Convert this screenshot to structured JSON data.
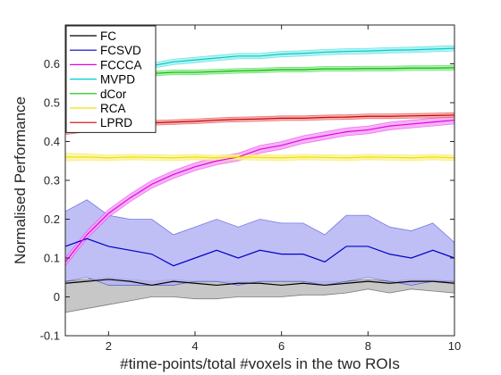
{
  "chart_data": {
    "type": "line",
    "xlabel": "#time-points/total #voxels in the two ROIs",
    "ylabel": "Normalised Performance",
    "xlim": [
      1,
      10
    ],
    "ylim": [
      -0.1,
      0.7
    ],
    "xticks": [
      2,
      4,
      6,
      8,
      10
    ],
    "yticks": [
      -0.1,
      0,
      0.1,
      0.2,
      0.3,
      0.4,
      0.5,
      0.6
    ],
    "x": [
      1,
      1.5,
      2,
      2.5,
      3,
      3.5,
      4,
      4.5,
      5,
      5.5,
      6,
      6.5,
      7,
      7.5,
      8,
      8.5,
      9,
      9.5,
      10
    ],
    "legend_position": "top-left",
    "grid": false,
    "series": [
      {
        "name": "FC",
        "color": "#000000",
        "band_color": "#bdbdbd",
        "mean": [
          0.035,
          0.04,
          0.045,
          0.04,
          0.03,
          0.04,
          0.035,
          0.03,
          0.035,
          0.035,
          0.03,
          0.035,
          0.03,
          0.035,
          0.04,
          0.035,
          0.04,
          0.04,
          0.035
        ],
        "lower": [
          -0.04,
          -0.03,
          -0.02,
          -0.01,
          0.0,
          0.0,
          -0.005,
          -0.005,
          0.0,
          0.0,
          0.0,
          0.005,
          0.005,
          0.01,
          0.02,
          0.01,
          0.02,
          0.015,
          0.01
        ],
        "upper": [
          0.04,
          0.045,
          0.05,
          0.045,
          0.04,
          0.045,
          0.04,
          0.04,
          0.04,
          0.04,
          0.04,
          0.04,
          0.04,
          0.04,
          0.045,
          0.04,
          0.045,
          0.045,
          0.04
        ]
      },
      {
        "name": "FCSVD",
        "color": "#0000c8",
        "band_color": "#b4b4f5",
        "mean": [
          0.13,
          0.15,
          0.13,
          0.12,
          0.11,
          0.08,
          0.1,
          0.12,
          0.1,
          0.12,
          0.11,
          0.11,
          0.09,
          0.13,
          0.13,
          0.11,
          0.1,
          0.12,
          0.1
        ],
        "lower": [
          0.04,
          0.05,
          0.03,
          0.03,
          0.03,
          0.03,
          0.04,
          0.04,
          0.03,
          0.04,
          0.04,
          0.04,
          0.03,
          0.04,
          0.05,
          0.04,
          0.03,
          0.04,
          0.04
        ],
        "upper": [
          0.22,
          0.25,
          0.21,
          0.2,
          0.2,
          0.16,
          0.18,
          0.2,
          0.18,
          0.2,
          0.19,
          0.19,
          0.16,
          0.21,
          0.21,
          0.18,
          0.17,
          0.19,
          0.14
        ]
      },
      {
        "name": "FCCCA",
        "color": "#e600e6",
        "band_color": "#f5a5f5",
        "mean": [
          0.09,
          0.16,
          0.215,
          0.255,
          0.29,
          0.315,
          0.335,
          0.35,
          0.36,
          0.38,
          0.39,
          0.405,
          0.415,
          0.425,
          0.43,
          0.44,
          0.445,
          0.45,
          0.455
        ],
        "lower": [
          0.08,
          0.15,
          0.205,
          0.245,
          0.28,
          0.305,
          0.325,
          0.34,
          0.35,
          0.37,
          0.38,
          0.395,
          0.405,
          0.415,
          0.42,
          0.43,
          0.435,
          0.44,
          0.445
        ],
        "upper": [
          0.1,
          0.17,
          0.225,
          0.265,
          0.3,
          0.325,
          0.345,
          0.36,
          0.37,
          0.39,
          0.4,
          0.415,
          0.425,
          0.435,
          0.44,
          0.45,
          0.455,
          0.46,
          0.465
        ]
      },
      {
        "name": "MVPD",
        "color": "#00cccc",
        "band_color": "#a8f0f0",
        "mean": [
          0.52,
          0.55,
          0.575,
          0.585,
          0.595,
          0.605,
          0.61,
          0.615,
          0.62,
          0.62,
          0.625,
          0.627,
          0.63,
          0.632,
          0.633,
          0.635,
          0.636,
          0.638,
          0.64
        ],
        "lower": [
          0.5,
          0.535,
          0.565,
          0.577,
          0.588,
          0.598,
          0.603,
          0.608,
          0.613,
          0.613,
          0.618,
          0.62,
          0.623,
          0.625,
          0.626,
          0.628,
          0.629,
          0.631,
          0.633
        ],
        "upper": [
          0.54,
          0.565,
          0.585,
          0.593,
          0.602,
          0.612,
          0.617,
          0.622,
          0.627,
          0.627,
          0.632,
          0.634,
          0.637,
          0.639,
          0.64,
          0.642,
          0.643,
          0.645,
          0.647
        ]
      },
      {
        "name": "dCor",
        "color": "#00c000",
        "band_color": "#a8eea8",
        "mean": [
          0.555,
          0.562,
          0.57,
          0.573,
          0.575,
          0.578,
          0.578,
          0.58,
          0.582,
          0.583,
          0.585,
          0.585,
          0.587,
          0.587,
          0.588,
          0.588,
          0.589,
          0.589,
          0.59
        ],
        "lower": [
          0.545,
          0.555,
          0.563,
          0.567,
          0.569,
          0.572,
          0.572,
          0.574,
          0.576,
          0.577,
          0.579,
          0.579,
          0.581,
          0.581,
          0.582,
          0.582,
          0.583,
          0.583,
          0.584
        ],
        "upper": [
          0.565,
          0.569,
          0.577,
          0.579,
          0.581,
          0.584,
          0.584,
          0.586,
          0.588,
          0.589,
          0.591,
          0.591,
          0.593,
          0.593,
          0.594,
          0.594,
          0.595,
          0.595,
          0.596
        ]
      },
      {
        "name": "RCA",
        "color": "#f0e000",
        "band_color": "#faf5a5",
        "mean": [
          0.36,
          0.36,
          0.358,
          0.36,
          0.359,
          0.358,
          0.36,
          0.358,
          0.36,
          0.359,
          0.358,
          0.36,
          0.359,
          0.358,
          0.36,
          0.359,
          0.358,
          0.36,
          0.358
        ],
        "lower": [
          0.35,
          0.352,
          0.351,
          0.353,
          0.352,
          0.351,
          0.353,
          0.351,
          0.353,
          0.352,
          0.351,
          0.353,
          0.352,
          0.351,
          0.353,
          0.352,
          0.351,
          0.353,
          0.351
        ],
        "upper": [
          0.37,
          0.368,
          0.365,
          0.367,
          0.366,
          0.365,
          0.367,
          0.365,
          0.367,
          0.366,
          0.365,
          0.367,
          0.366,
          0.365,
          0.367,
          0.366,
          0.365,
          0.367,
          0.365
        ]
      },
      {
        "name": "LPRD",
        "color": "#d40000",
        "band_color": "#f0a8a8",
        "mean": [
          0.43,
          0.435,
          0.44,
          0.445,
          0.448,
          0.45,
          0.452,
          0.455,
          0.457,
          0.458,
          0.46,
          0.46,
          0.462,
          0.463,
          0.465,
          0.465,
          0.466,
          0.467,
          0.468
        ],
        "lower": [
          0.418,
          0.425,
          0.433,
          0.438,
          0.442,
          0.444,
          0.446,
          0.449,
          0.451,
          0.452,
          0.454,
          0.454,
          0.456,
          0.457,
          0.459,
          0.459,
          0.46,
          0.461,
          0.462
        ],
        "upper": [
          0.442,
          0.445,
          0.447,
          0.452,
          0.454,
          0.456,
          0.458,
          0.461,
          0.463,
          0.464,
          0.466,
          0.466,
          0.468,
          0.469,
          0.471,
          0.471,
          0.472,
          0.473,
          0.474
        ]
      }
    ]
  }
}
